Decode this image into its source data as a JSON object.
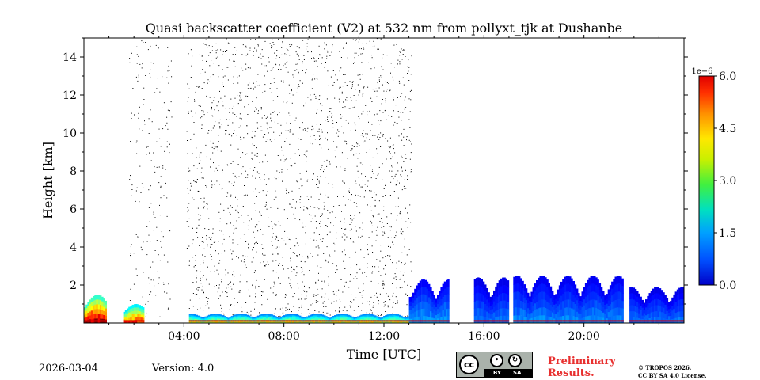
{
  "chart_data": {
    "type": "heatmap",
    "title": "Quasi backscatter coefficient (V2) at 532 nm from pollyxt_tjk at Dushanbe",
    "xlabel": "Time [UTC]",
    "ylabel": "Height [km]",
    "xlim_hours": [
      0,
      24
    ],
    "ylim_km": [
      0,
      15
    ],
    "x_ticks": [
      {
        "value": 4,
        "label": "04:00"
      },
      {
        "value": 8,
        "label": "08:00"
      },
      {
        "value": 12,
        "label": "12:00"
      },
      {
        "value": 16,
        "label": "16:00"
      },
      {
        "value": 20,
        "label": "20:00"
      }
    ],
    "y_ticks": [
      {
        "value": 2,
        "label": "2"
      },
      {
        "value": 4,
        "label": "4"
      },
      {
        "value": 6,
        "label": "6"
      },
      {
        "value": 8,
        "label": "8"
      },
      {
        "value": 10,
        "label": "10"
      },
      {
        "value": 12,
        "label": "12"
      },
      {
        "value": 14,
        "label": "14"
      }
    ],
    "colorbar": {
      "range": [
        0.0,
        6.0
      ],
      "exponent_label": "1e−6",
      "ticks": [
        {
          "value": 0.0,
          "label": "0.0"
        },
        {
          "value": 1.5,
          "label": "1.5"
        },
        {
          "value": 3.0,
          "label": "3.0"
        },
        {
          "value": 4.5,
          "label": "4.5"
        },
        {
          "value": 6.0,
          "label": "6.0"
        }
      ],
      "colormap": "jet"
    },
    "data_gaps_hours": [
      [
        0.9,
        1.5
      ],
      [
        3.5,
        4.1
      ],
      [
        16.95,
        17.1
      ],
      [
        21.55,
        21.75
      ]
    ],
    "aerosol_layers": [
      {
        "start": 0.0,
        "end": 1.4,
        "top_km": 1.5,
        "value": 5.0
      },
      {
        "start": 1.5,
        "end": 2.4,
        "top_km": 1.0,
        "value": 4.2
      },
      {
        "start": 4.2,
        "end": 13.0,
        "top_km": 0.5,
        "value": 3.0
      },
      {
        "start": 13.0,
        "end": 14.6,
        "top_km": 2.3,
        "value": 1.4
      },
      {
        "start": 15.6,
        "end": 16.95,
        "top_km": 2.4,
        "value": 1.2
      },
      {
        "start": 17.1,
        "end": 21.55,
        "top_km": 2.5,
        "value": 1.3
      },
      {
        "start": 21.75,
        "end": 24.0,
        "top_km": 1.9,
        "value": 1.2
      }
    ],
    "noise_region_hours": [
      1.8,
      13.1
    ],
    "noise_top_km": 15.0
  },
  "footer": {
    "date": "2026-03-04",
    "version": "Version: 4.0",
    "preliminary_line1": "Preliminary",
    "preliminary_line2": "Results.",
    "copyright_line1": "© TROPOS 2026.",
    "copyright_line2": "CC BY SA 4.0 License.",
    "cc_text": "cc",
    "cc_by": "BY",
    "cc_sa": "SA"
  }
}
